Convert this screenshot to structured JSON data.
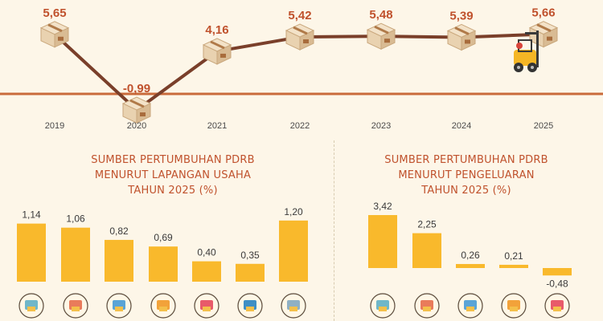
{
  "chart_data": [
    {
      "type": "line",
      "title": "",
      "x": [
        "2019",
        "2020",
        "2021",
        "2022",
        "2023",
        "2024",
        "2025"
      ],
      "values": [
        5.65,
        -0.99,
        4.16,
        5.42,
        5.48,
        5.39,
        5.66
      ],
      "value_labels": [
        "5,65",
        "-0,99",
        "4,16",
        "5,42",
        "5,48",
        "5,39",
        "5,66"
      ],
      "line_color": "#7a3f2a",
      "label_color": "#c0522d",
      "marker_icon": "cardboard-box-icon",
      "end_icon": "forklift-icon"
    },
    {
      "type": "bar",
      "title_lines": [
        "SUMBER PERTUMBUHAN PDRB",
        "MENURUT LAPANGAN USAHA",
        "TAHUN 2025 (%)"
      ],
      "values": [
        1.14,
        1.06,
        0.82,
        0.69,
        0.4,
        0.35,
        1.2
      ],
      "value_labels": [
        "1,14",
        "1,06",
        "0,82",
        "0,69",
        "0,40",
        "0,35",
        "1,20"
      ],
      "category_icons": [
        "agriculture-icon",
        "industry-icon",
        "transport-icon",
        "trade-icon",
        "health-icon",
        "information-icon",
        "other-sectors-icon"
      ],
      "bar_color": "#f9b92c"
    },
    {
      "type": "bar",
      "title_lines": [
        "SUMBER PERTUMBUHAN PDRB",
        "MENURUT PENGELUARAN",
        "TAHUN 2025 (%)"
      ],
      "values": [
        3.42,
        2.25,
        0.26,
        0.21,
        -0.48
      ],
      "value_labels": [
        "3,42",
        "2,25",
        "0,26",
        "0,21",
        "-0,48"
      ],
      "category_icons": [
        "household-consumption-icon",
        "investment-icon",
        "nonprofit-consumption-icon",
        "government-consumption-icon",
        "net-export-icon"
      ],
      "bar_color": "#f9b92c"
    }
  ]
}
